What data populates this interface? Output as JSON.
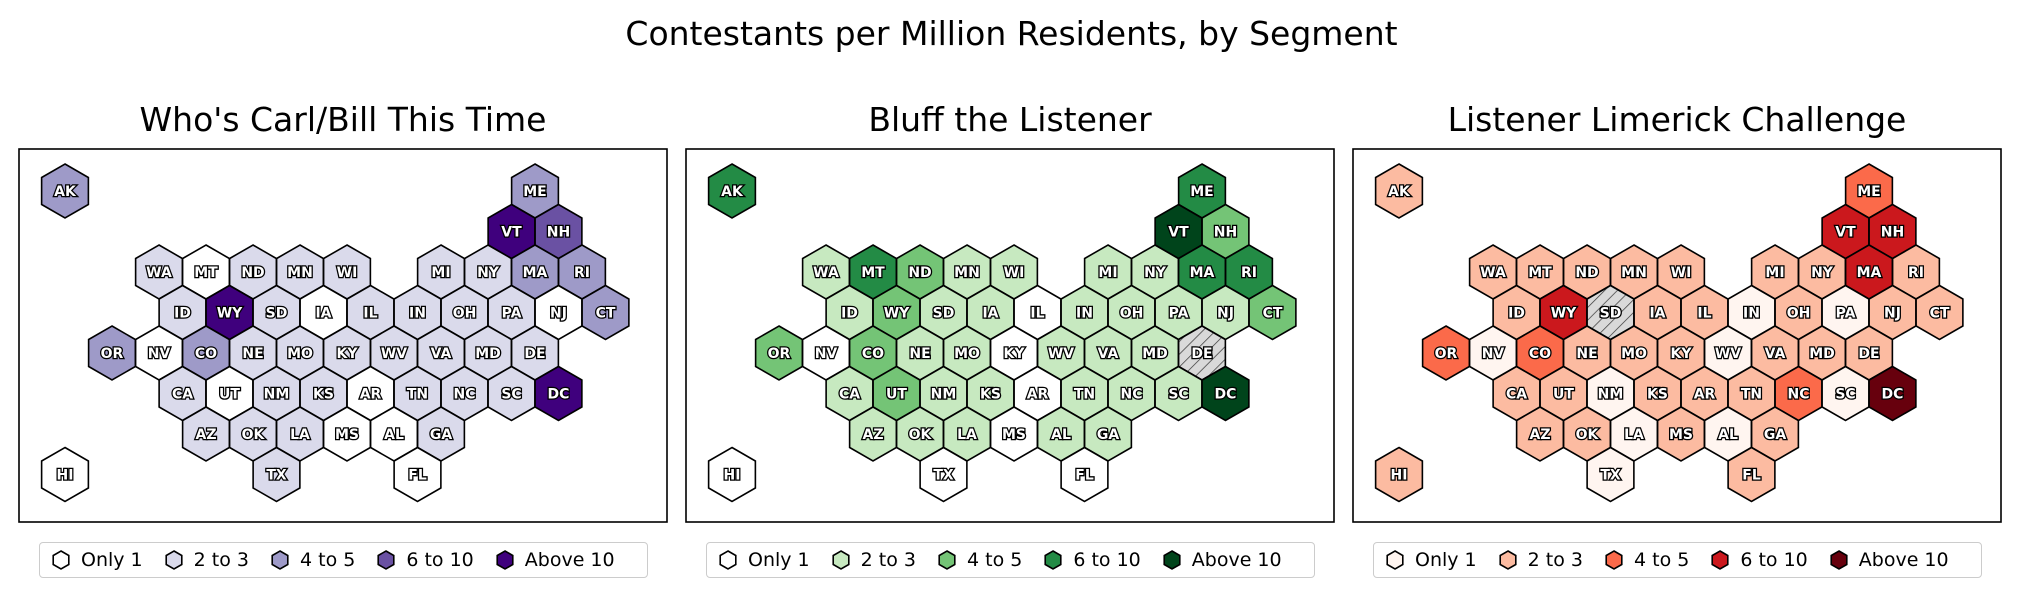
{
  "title": "Contestants per Million Residents, by Segment",
  "legend_bins": [
    "Only 1",
    "2 to 3",
    "4 to 5",
    "6 to 10",
    "Above 10"
  ],
  "chart_data": [
    {
      "type": "hex tile map",
      "title": "Who's Carl/Bill This Time",
      "palette": [
        "#ffffff",
        "#dadaeb",
        "#9e9ac8",
        "#6a51a3",
        "#3f007d"
      ],
      "states": [
        {
          "state": "AK",
          "bin": 2
        },
        {
          "state": "ME",
          "bin": 2
        },
        {
          "state": "VT",
          "bin": 4
        },
        {
          "state": "NH",
          "bin": 3
        },
        {
          "state": "WA",
          "bin": 1
        },
        {
          "state": "MT",
          "bin": 0
        },
        {
          "state": "ND",
          "bin": 1
        },
        {
          "state": "MN",
          "bin": 1
        },
        {
          "state": "WI",
          "bin": 1
        },
        {
          "state": "MI",
          "bin": 1
        },
        {
          "state": "NY",
          "bin": 1
        },
        {
          "state": "MA",
          "bin": 2
        },
        {
          "state": "RI",
          "bin": 2
        },
        {
          "state": "ID",
          "bin": 1
        },
        {
          "state": "WY",
          "bin": 4
        },
        {
          "state": "SD",
          "bin": 1
        },
        {
          "state": "IA",
          "bin": 0
        },
        {
          "state": "IL",
          "bin": 1
        },
        {
          "state": "IN",
          "bin": 1
        },
        {
          "state": "OH",
          "bin": 1
        },
        {
          "state": "PA",
          "bin": 1
        },
        {
          "state": "NJ",
          "bin": 0
        },
        {
          "state": "CT",
          "bin": 2
        },
        {
          "state": "OR",
          "bin": 2
        },
        {
          "state": "NV",
          "bin": 0
        },
        {
          "state": "CO",
          "bin": 2
        },
        {
          "state": "NE",
          "bin": 1
        },
        {
          "state": "MO",
          "bin": 1
        },
        {
          "state": "KY",
          "bin": 1
        },
        {
          "state": "WV",
          "bin": 1
        },
        {
          "state": "VA",
          "bin": 1
        },
        {
          "state": "MD",
          "bin": 1
        },
        {
          "state": "DE",
          "bin": 1
        },
        {
          "state": "CA",
          "bin": 1
        },
        {
          "state": "UT",
          "bin": 0
        },
        {
          "state": "NM",
          "bin": 1
        },
        {
          "state": "KS",
          "bin": 1
        },
        {
          "state": "AR",
          "bin": 0
        },
        {
          "state": "TN",
          "bin": 1
        },
        {
          "state": "NC",
          "bin": 1
        },
        {
          "state": "SC",
          "bin": 1
        },
        {
          "state": "DC",
          "bin": 4
        },
        {
          "state": "AZ",
          "bin": 1
        },
        {
          "state": "OK",
          "bin": 1
        },
        {
          "state": "LA",
          "bin": 1
        },
        {
          "state": "MS",
          "bin": 0
        },
        {
          "state": "AL",
          "bin": 0
        },
        {
          "state": "GA",
          "bin": 1
        },
        {
          "state": "HI",
          "bin": 0
        },
        {
          "state": "TX",
          "bin": 1
        },
        {
          "state": "FL",
          "bin": 0
        }
      ]
    },
    {
      "type": "hex tile map",
      "title": "Bluff the Listener",
      "palette": [
        "#ffffff",
        "#c7e9c0",
        "#74c476",
        "#238b45",
        "#00441b"
      ],
      "states": [
        {
          "state": "AK",
          "bin": 3
        },
        {
          "state": "ME",
          "bin": 3
        },
        {
          "state": "VT",
          "bin": 4
        },
        {
          "state": "NH",
          "bin": 2
        },
        {
          "state": "WA",
          "bin": 1
        },
        {
          "state": "MT",
          "bin": 3
        },
        {
          "state": "ND",
          "bin": 2
        },
        {
          "state": "MN",
          "bin": 1
        },
        {
          "state": "WI",
          "bin": 1
        },
        {
          "state": "MI",
          "bin": 1
        },
        {
          "state": "NY",
          "bin": 1
        },
        {
          "state": "MA",
          "bin": 3
        },
        {
          "state": "RI",
          "bin": 3
        },
        {
          "state": "ID",
          "bin": 1
        },
        {
          "state": "WY",
          "bin": 2
        },
        {
          "state": "SD",
          "bin": 1
        },
        {
          "state": "IA",
          "bin": 1
        },
        {
          "state": "IL",
          "bin": 0
        },
        {
          "state": "IN",
          "bin": 1
        },
        {
          "state": "OH",
          "bin": 1
        },
        {
          "state": "PA",
          "bin": 1
        },
        {
          "state": "NJ",
          "bin": 1
        },
        {
          "state": "CT",
          "bin": 2
        },
        {
          "state": "OR",
          "bin": 2
        },
        {
          "state": "NV",
          "bin": 0
        },
        {
          "state": "CO",
          "bin": 2
        },
        {
          "state": "NE",
          "bin": 1
        },
        {
          "state": "MO",
          "bin": 1
        },
        {
          "state": "KY",
          "bin": 0
        },
        {
          "state": "WV",
          "bin": 1
        },
        {
          "state": "VA",
          "bin": 1
        },
        {
          "state": "MD",
          "bin": 1
        },
        {
          "state": "DE",
          "bin": null
        },
        {
          "state": "CA",
          "bin": 1
        },
        {
          "state": "UT",
          "bin": 2
        },
        {
          "state": "NM",
          "bin": 1
        },
        {
          "state": "KS",
          "bin": 1
        },
        {
          "state": "AR",
          "bin": 0
        },
        {
          "state": "TN",
          "bin": 1
        },
        {
          "state": "NC",
          "bin": 1
        },
        {
          "state": "SC",
          "bin": 1
        },
        {
          "state": "DC",
          "bin": 4
        },
        {
          "state": "AZ",
          "bin": 1
        },
        {
          "state": "OK",
          "bin": 1
        },
        {
          "state": "LA",
          "bin": 1
        },
        {
          "state": "MS",
          "bin": 0
        },
        {
          "state": "AL",
          "bin": 1
        },
        {
          "state": "GA",
          "bin": 1
        },
        {
          "state": "HI",
          "bin": 0
        },
        {
          "state": "TX",
          "bin": 0
        },
        {
          "state": "FL",
          "bin": 0
        }
      ]
    },
    {
      "type": "hex tile map",
      "title": "Listener Limerick Challenge",
      "palette": [
        "#fff5f0",
        "#fcbba1",
        "#fb6a4a",
        "#cb181d",
        "#67000d"
      ],
      "states": [
        {
          "state": "AK",
          "bin": 1
        },
        {
          "state": "ME",
          "bin": 2
        },
        {
          "state": "VT",
          "bin": 3
        },
        {
          "state": "NH",
          "bin": 3
        },
        {
          "state": "WA",
          "bin": 1
        },
        {
          "state": "MT",
          "bin": 1
        },
        {
          "state": "ND",
          "bin": 1
        },
        {
          "state": "MN",
          "bin": 1
        },
        {
          "state": "WI",
          "bin": 1
        },
        {
          "state": "MI",
          "bin": 1
        },
        {
          "state": "NY",
          "bin": 1
        },
        {
          "state": "MA",
          "bin": 3
        },
        {
          "state": "RI",
          "bin": 1
        },
        {
          "state": "ID",
          "bin": 1
        },
        {
          "state": "WY",
          "bin": 3
        },
        {
          "state": "SD",
          "bin": null
        },
        {
          "state": "IA",
          "bin": 1
        },
        {
          "state": "IL",
          "bin": 1
        },
        {
          "state": "IN",
          "bin": 0
        },
        {
          "state": "OH",
          "bin": 1
        },
        {
          "state": "PA",
          "bin": 0
        },
        {
          "state": "NJ",
          "bin": 1
        },
        {
          "state": "CT",
          "bin": 1
        },
        {
          "state": "OR",
          "bin": 2
        },
        {
          "state": "NV",
          "bin": 0
        },
        {
          "state": "CO",
          "bin": 2
        },
        {
          "state": "NE",
          "bin": 1
        },
        {
          "state": "MO",
          "bin": 1
        },
        {
          "state": "KY",
          "bin": 1
        },
        {
          "state": "WV",
          "bin": 0
        },
        {
          "state": "VA",
          "bin": 1
        },
        {
          "state": "MD",
          "bin": 1
        },
        {
          "state": "DE",
          "bin": 1
        },
        {
          "state": "CA",
          "bin": 1
        },
        {
          "state": "UT",
          "bin": 1
        },
        {
          "state": "NM",
          "bin": 0
        },
        {
          "state": "KS",
          "bin": 1
        },
        {
          "state": "AR",
          "bin": 1
        },
        {
          "state": "TN",
          "bin": 1
        },
        {
          "state": "NC",
          "bin": 2
        },
        {
          "state": "SC",
          "bin": 0
        },
        {
          "state": "DC",
          "bin": 4
        },
        {
          "state": "AZ",
          "bin": 1
        },
        {
          "state": "OK",
          "bin": 1
        },
        {
          "state": "LA",
          "bin": 0
        },
        {
          "state": "MS",
          "bin": 1
        },
        {
          "state": "AL",
          "bin": 0
        },
        {
          "state": "GA",
          "bin": 1
        },
        {
          "state": "HI",
          "bin": 1
        },
        {
          "state": "TX",
          "bin": 0
        },
        {
          "state": "FL",
          "bin": 1
        }
      ]
    }
  ]
}
